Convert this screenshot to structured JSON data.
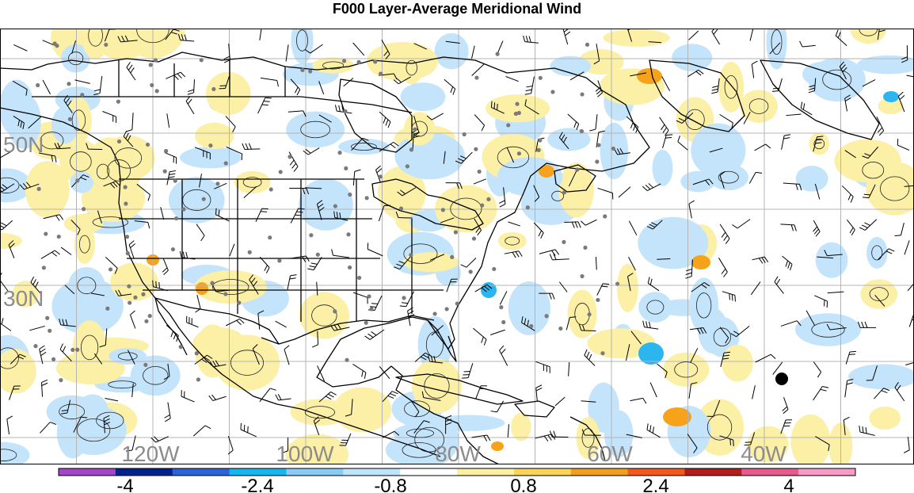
{
  "title": "F000 Layer-Average Meridional Wind",
  "lat_labels": [
    "50N",
    "30N"
  ],
  "lon_labels": [
    "120W",
    "100W",
    "80W",
    "60W",
    "40W"
  ],
  "colorbar": {
    "tick_labels": [
      "-4",
      "-2.4",
      "-0.8",
      "0.8",
      "2.4",
      "4"
    ],
    "colors": [
      "#a347c9",
      "#00238c",
      "#2e63d6",
      "#19b5ee",
      "#8ccbf2",
      "#bfe5fa",
      "#ffffff",
      "#fbf0a3",
      "#f9d45a",
      "#f0a020",
      "#f05a1e",
      "#b01e1e",
      "#e25c8c",
      "#f79cc6"
    ]
  },
  "colors": {
    "positive_light": "#fcefa6",
    "positive_mid": "#f6a21b",
    "negative_light": "#c4e4fb",
    "negative_mid": "#2bb6f0",
    "grid": "#b4b4b4",
    "label_grey": "#8c8c8c",
    "station": "#7a7a7a"
  }
}
